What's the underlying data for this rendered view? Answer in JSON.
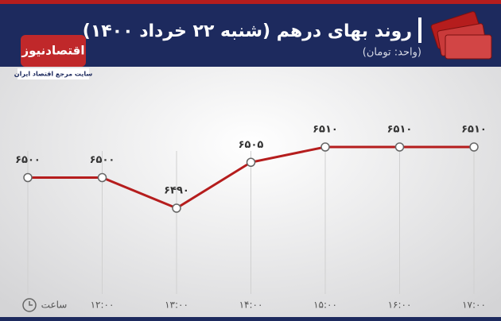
{
  "chart_data": {
    "type": "line",
    "title": "روند بهای درهم (شنبه ۲۲ خرداد ۱۴۰۰)",
    "subtitle": "(واحد: تومان)",
    "x_label": "ساعت",
    "categories": [
      null,
      "۱۲:۰۰",
      "۱۳:۰۰",
      "۱۴:۰۰",
      "۱۵:۰۰",
      "۱۶:۰۰",
      "۱۷:۰۰"
    ],
    "series": [
      {
        "color": "#b51d1d",
        "values": [
          6500,
          6500,
          6490,
          6505,
          6510,
          6510,
          6510
        ],
        "value_labels": [
          "۶۵۰۰",
          "۶۵۰۰",
          "۶۴۹۰",
          "۶۵۰۵",
          "۶۵۱۰",
          "۶۵۱۰",
          "۶۵۱۰"
        ]
      }
    ]
  },
  "logo": {
    "name": "اقتصادنیوز",
    "tagline": "سایت مرجع اقتصاد ایران"
  }
}
